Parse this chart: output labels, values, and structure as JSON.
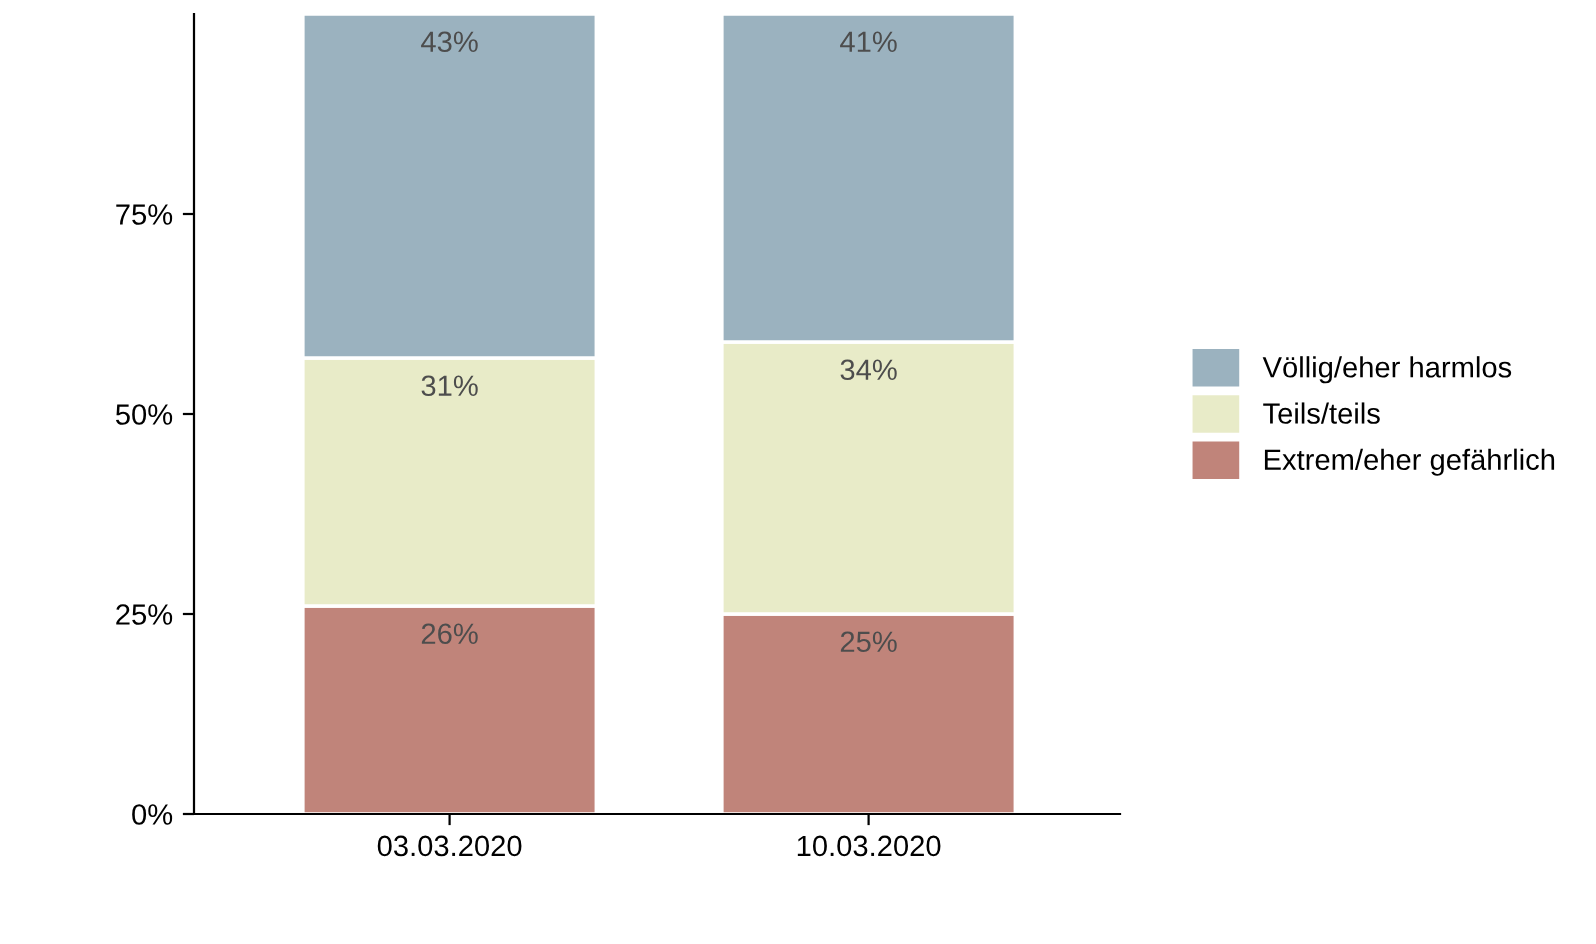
{
  "chart_data": {
    "type": "bar",
    "stacked": true,
    "categories": [
      "03.03.2020",
      "10.03.2020"
    ],
    "series": [
      {
        "name": "Extrem/eher gefährlich",
        "color": "#c0847a",
        "values": [
          26,
          25
        ]
      },
      {
        "name": "Teils/teils",
        "color": "#e8ebc8",
        "values": [
          31,
          34
        ]
      },
      {
        "name": "Völlig/eher harmlos",
        "color": "#9bb2bf",
        "values": [
          43,
          41
        ]
      }
    ],
    "value_labels": [
      [
        "26%",
        "25%"
      ],
      [
        "31%",
        "34%"
      ],
      [
        "43%",
        "41%"
      ]
    ],
    "ylim": [
      0,
      100
    ],
    "yticks": [
      {
        "value": 0,
        "label": "0%"
      },
      {
        "value": 25,
        "label": "25%"
      },
      {
        "value": 50,
        "label": "50%"
      },
      {
        "value": 75,
        "label": "75%"
      }
    ],
    "grid": false,
    "legend": "right"
  }
}
